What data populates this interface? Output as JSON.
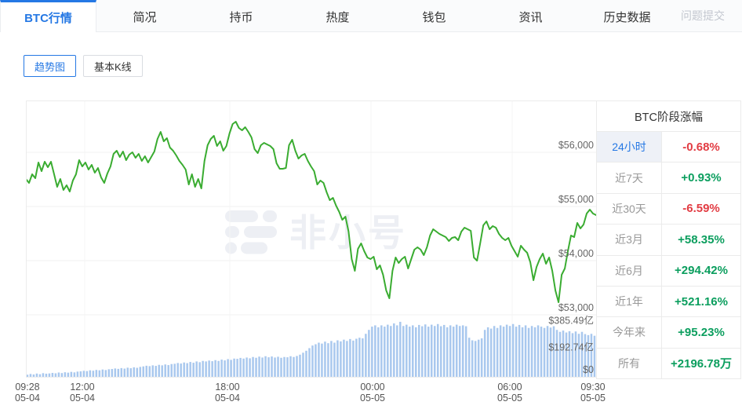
{
  "nav": {
    "tabs": [
      "BTC行情",
      "简况",
      "持币",
      "热度",
      "钱包",
      "资讯",
      "历史数据"
    ],
    "active_tab": "BTC行情",
    "right_link": "问题提交"
  },
  "toolbar": {
    "buttons": [
      "趋势图",
      "基本K线"
    ],
    "active_button": "趋势图"
  },
  "watermark": {
    "text": "非小号"
  },
  "panel": {
    "title": "BTC阶段涨幅",
    "rows": [
      {
        "label": "24小时",
        "value": "-0.68%",
        "dir": "down",
        "active": true
      },
      {
        "label": "近7天",
        "value": "+0.93%",
        "dir": "up",
        "active": false
      },
      {
        "label": "近30天",
        "value": "-6.59%",
        "dir": "down",
        "active": false
      },
      {
        "label": "近3月",
        "value": "+58.35%",
        "dir": "up",
        "active": false
      },
      {
        "label": "近6月",
        "value": "+294.42%",
        "dir": "up",
        "active": false
      },
      {
        "label": "近1年",
        "value": "+521.16%",
        "dir": "up",
        "active": false
      },
      {
        "label": "今年来",
        "value": "+95.23%",
        "dir": "up",
        "active": false
      },
      {
        "label": "所有",
        "value": "+2196.78万",
        "dir": "up",
        "active": false
      }
    ]
  },
  "chart_data": {
    "type": "line+bar",
    "price_color": "#3aac31",
    "volume_color": "#a9c8ee",
    "grid_color": "#f0f0f0",
    "price_axis": {
      "unit": "USD",
      "ticks": [
        56000,
        55000,
        54000,
        53000
      ],
      "tick_labels": [
        "$56,000",
        "$55,000",
        "$54,000",
        "$53,000"
      ]
    },
    "volume_axis": {
      "unit": "亿",
      "ticks": [
        385.49,
        192.74,
        0
      ],
      "tick_labels": [
        "$385.49亿",
        "$192.74亿",
        "$0"
      ]
    },
    "x_ticks": [
      {
        "time": "09:28",
        "date": "05-04"
      },
      {
        "time": "12:00",
        "date": "05-04"
      },
      {
        "time": "18:00",
        "date": "05-04"
      },
      {
        "time": "00:00",
        "date": "05-05"
      },
      {
        "time": "06:00",
        "date": "05-05"
      },
      {
        "time": "09:30",
        "date": "05-05"
      }
    ],
    "price_series": [
      55507,
      55435,
      55594,
      55522,
      55812,
      55652,
      55826,
      55725,
      55826,
      55594,
      55362,
      55507,
      55304,
      55391,
      55275,
      55478,
      55594,
      55855,
      55739,
      55812,
      55681,
      55768,
      55623,
      55710,
      55536,
      55435,
      55609,
      55739,
      55971,
      56029,
      55913,
      56014,
      55855,
      55957,
      56000,
      55899,
      55971,
      55841,
      55928,
      55812,
      55913,
      56014,
      56246,
      56377,
      56203,
      56261,
      56087,
      56029,
      55942,
      55841,
      55768,
      55681,
      55406,
      55594,
      55362,
      55507,
      55333,
      55841,
      56130,
      56246,
      56304,
      56116,
      56203,
      56029,
      56116,
      56348,
      56522,
      56565,
      56449,
      56406,
      56464,
      56377,
      56275,
      56058,
      55985,
      56130,
      56174,
      56145,
      56116,
      56058,
      55797,
      55696,
      55696,
      55710,
      56130,
      56232,
      56029,
      55884,
      55942,
      55971,
      55841,
      55739,
      55652,
      55406,
      55478,
      55435,
      55261,
      55116,
      55159,
      55014,
      54899,
      54754,
      54812,
      54536,
      54029,
      53812,
      54217,
      54319,
      54174,
      54058,
      54029,
      54072,
      53841,
      53913,
      53739,
      53449,
      53304,
      53812,
      54058,
      53957,
      54029,
      54072,
      53855,
      54029,
      54203,
      54246,
      54203,
      54101,
      54246,
      54464,
      54580,
      54536,
      54493,
      54464,
      54435,
      54362,
      54420,
      54435,
      54377,
      54536,
      54609,
      54580,
      54551,
      54058,
      54000,
      54319,
      54652,
      54725,
      54580,
      54638,
      54609,
      54493,
      54420,
      54377,
      54420,
      54275,
      54174,
      54072,
      54275,
      54203,
      54145,
      53971,
      53638,
      53884,
      54029,
      54130,
      53942,
      54058,
      53812,
      53449,
      53232,
      53739,
      53855,
      54174,
      54464,
      54435,
      54696,
      54594,
      54667,
      54870,
      54942,
      54870,
      54841
    ],
    "volume_series": [
      16,
      22,
      18,
      25,
      20,
      28,
      24,
      26,
      30,
      27,
      33,
      29,
      35,
      32,
      38,
      34,
      40,
      42,
      46,
      44,
      50,
      47,
      53,
      50,
      56,
      52,
      58,
      60,
      64,
      61,
      67,
      63,
      70,
      66,
      73,
      69,
      76,
      80,
      85,
      82,
      88,
      84,
      92,
      88,
      95,
      90,
      98,
      100,
      106,
      102,
      110,
      105,
      114,
      108,
      118,
      112,
      122,
      118,
      125,
      120,
      128,
      122,
      132,
      126,
      136,
      130,
      140,
      138,
      145,
      140,
      148,
      142,
      152,
      146,
      155,
      148,
      158,
      150,
      156,
      148,
      154,
      146,
      152,
      150,
      158,
      152,
      160,
      170,
      185,
      200,
      220,
      240,
      250,
      262,
      255,
      270,
      258,
      275,
      262,
      280,
      272,
      285,
      275,
      290,
      278,
      292,
      300,
      295,
      330,
      360,
      385,
      395,
      380,
      395,
      385,
      400,
      390,
      410,
      395,
      422,
      390,
      400,
      385,
      395,
      380,
      398,
      388,
      402,
      385,
      400,
      390,
      405,
      388,
      398,
      380,
      395,
      385,
      400,
      390,
      395,
      388,
      300,
      280,
      275,
      285,
      295,
      360,
      380,
      370,
      390,
      375,
      395,
      385,
      400,
      390,
      405,
      385,
      398,
      380,
      395,
      375,
      390,
      380,
      395,
      385,
      375,
      390,
      378,
      388,
      360,
      345,
      355,
      340,
      350,
      335,
      348,
      330,
      345,
      328,
      320,
      330,
      315
    ]
  }
}
